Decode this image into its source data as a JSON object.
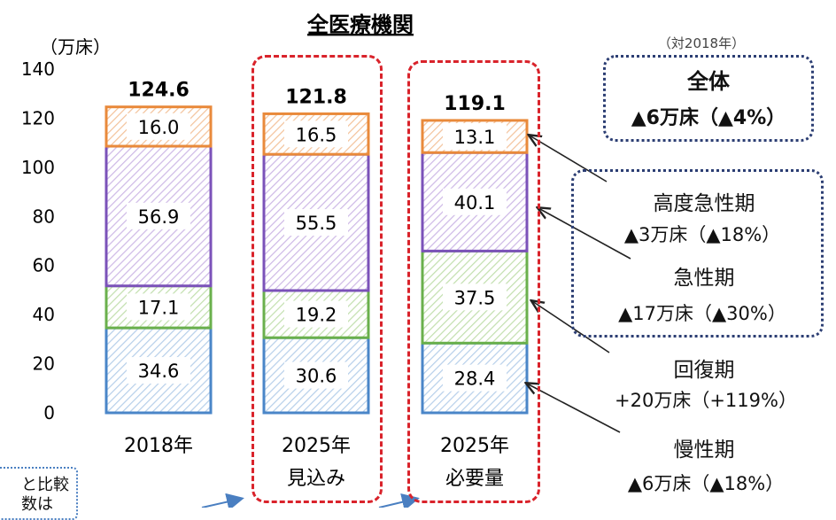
{
  "chart_data": {
    "type": "bar",
    "stacked": true,
    "title": "全医療機関",
    "unit_label": "（万床）",
    "categories": [
      [
        "2018年"
      ],
      [
        "2025年",
        "見込み"
      ],
      [
        "2025年",
        "必要量"
      ]
    ],
    "ylim": [
      0,
      140
    ],
    "yticks": [
      0,
      20,
      40,
      60,
      80,
      100,
      120,
      140
    ],
    "totals": [
      "124.6",
      "121.8",
      "119.1"
    ],
    "series": [
      {
        "name": "慢性期",
        "values": [
          34.6,
          30.6,
          28.4
        ],
        "labels": [
          "34.6",
          "30.6",
          "28.4"
        ],
        "color": "#4a86c8",
        "hatch": "#b6cfea"
      },
      {
        "name": "回復期",
        "values": [
          17.1,
          19.2,
          37.5
        ],
        "labels": [
          "17.1",
          "19.2",
          "37.5"
        ],
        "color": "#6ab04c",
        "hatch": "#c2dfae"
      },
      {
        "name": "急性期",
        "values": [
          56.9,
          55.5,
          40.1
        ],
        "labels": [
          "56.9",
          "55.5",
          "40.1"
        ],
        "color": "#7b52b9",
        "hatch": "#cdb8e6"
      },
      {
        "name": "高度急性期",
        "values": [
          16.0,
          16.5,
          13.1
        ],
        "labels": [
          "16.0",
          "16.5",
          "13.1"
        ],
        "color": "#e98a3b",
        "hatch": "#f3c29a"
      }
    ],
    "grid": false,
    "legend": "right (annotations)"
  },
  "annotations": {
    "compare_note": "（対2018年）",
    "total_title": "全体",
    "total_change": "▲6万床（▲4%）",
    "high_acute_name": "高度急性期",
    "high_acute_change": "▲3万床（▲18%）",
    "acute_name": "急性期",
    "acute_change": "▲17万床（▲30%）",
    "recovery_name": "回復期",
    "recovery_change": "+20万床（+119%）",
    "chronic_name": "慢性期",
    "chronic_change": "▲6万床（▲18%）",
    "corner_note_1": "と比較",
    "corner_note_2": "数は"
  },
  "colors": {
    "frame": "#d9232b",
    "dotted_box": "#2c3e73",
    "arrow": "#4a7fc1"
  }
}
